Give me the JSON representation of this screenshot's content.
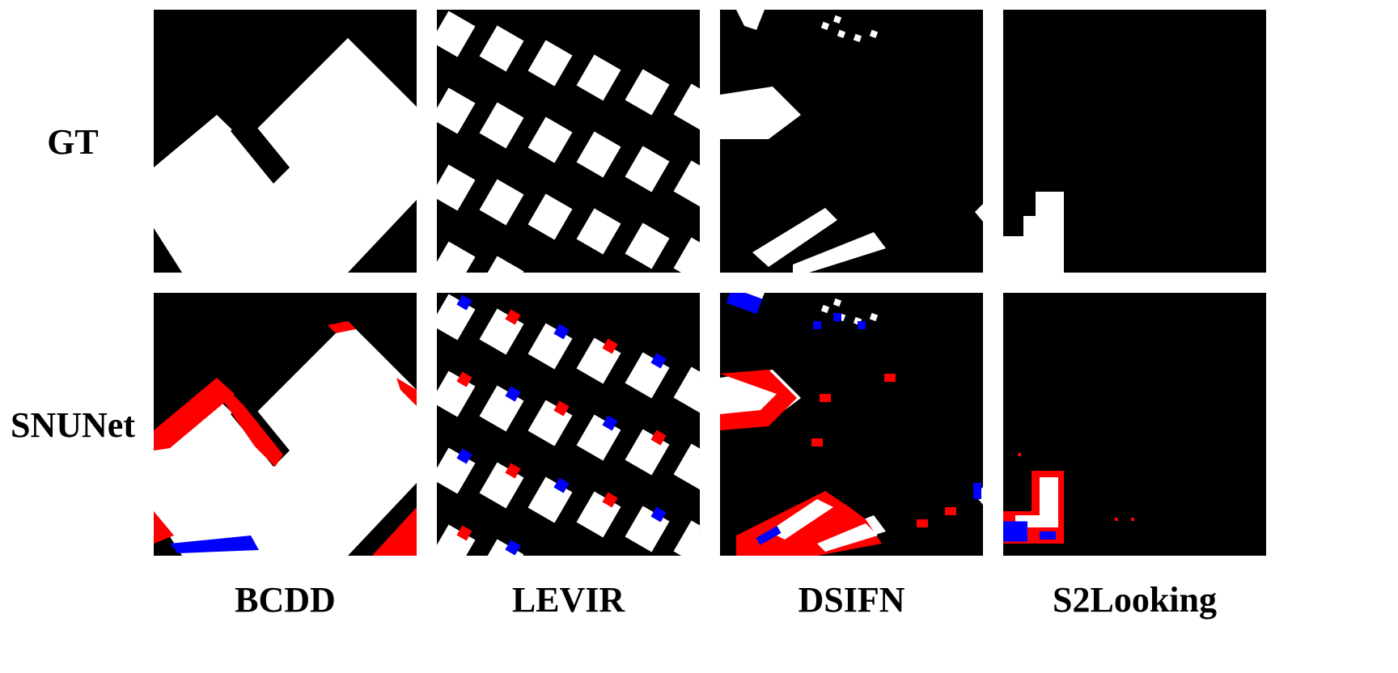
{
  "figure": {
    "row_labels": [
      "GT",
      "SNUNet"
    ],
    "column_labels": [
      "BCDD",
      "LEVIR",
      "DSIFN",
      "S2Looking"
    ],
    "colors": {
      "background": "#000000",
      "true_positive": "#ffffff",
      "false_positive": "#ff0000",
      "false_negative": "#0000ff"
    }
  }
}
